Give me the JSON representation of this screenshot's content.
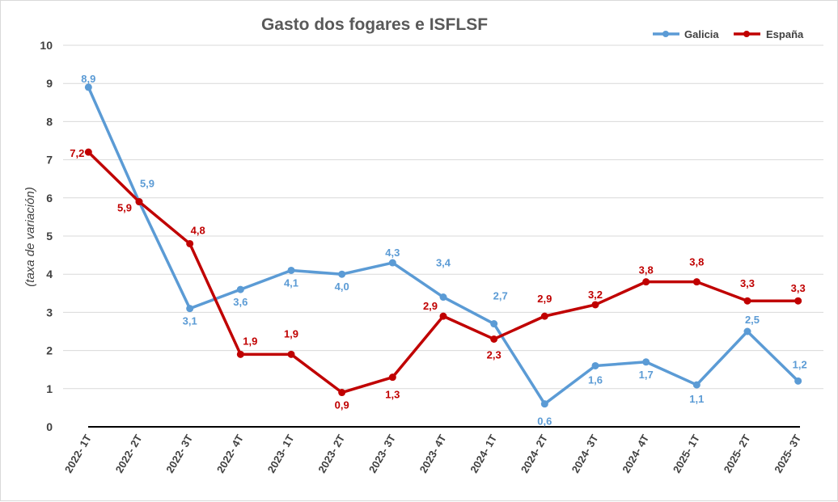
{
  "chart_data": {
    "type": "line",
    "title": "Gasto dos fogares e ISFLSF",
    "ylabel": "(taxa de variación)",
    "xlabel": "",
    "ylim": [
      0,
      10
    ],
    "yticks": [
      "0",
      "1",
      "2",
      "3",
      "4",
      "5",
      "6",
      "7",
      "8",
      "9",
      "10"
    ],
    "grid": true,
    "legend_position": "top-right",
    "categories": [
      "2022- 1T",
      "2022- 2T",
      "2022- 3T",
      "2022- 4T",
      "2023- 1T",
      "2023- 2T",
      "2023- 3T",
      "2023- 4T",
      "2024- 1T",
      "2024- 2T",
      "2024- 3T",
      "2024- 4T",
      "2025- 1T",
      "2025- 2T",
      "2025- 3T"
    ],
    "series": [
      {
        "name": "Galicia",
        "color": "#5b9bd5",
        "values": [
          8.9,
          5.9,
          3.1,
          3.6,
          4.1,
          4.0,
          4.3,
          3.4,
          2.7,
          0.6,
          1.6,
          1.7,
          1.1,
          2.5,
          1.2
        ],
        "labels": [
          "8,9",
          "5,9",
          "3,1",
          "3,6",
          "4,1",
          "4,0",
          "4,3",
          "3,4",
          "2,7",
          "0,6",
          "1,6",
          "1,7",
          "1,1",
          "2,5",
          "1,2"
        ]
      },
      {
        "name": "España",
        "color": "#c00000",
        "values": [
          7.2,
          5.9,
          4.8,
          1.9,
          1.9,
          0.9,
          1.3,
          2.9,
          2.3,
          2.9,
          3.2,
          3.8,
          3.8,
          3.3,
          3.3
        ],
        "labels": [
          "7,2",
          "5,9",
          "4,8",
          "1,9",
          "1,9",
          "0,9",
          "1,3",
          "2,9",
          "2,3",
          "2,9",
          "3,2",
          "3,8",
          "3,8",
          "3,3",
          "3,3"
        ]
      }
    ]
  }
}
